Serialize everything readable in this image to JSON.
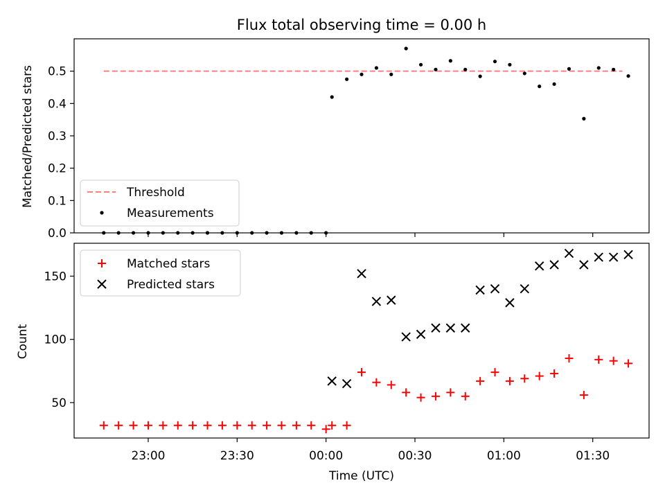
{
  "chart_data": [
    {
      "type": "scatter",
      "title": "Flux total observing time = 0.00 h",
      "ylabel": "Matched/Predicted stars",
      "ylim": [
        0,
        0.6
      ],
      "yticks": [
        "0.0",
        "0.1",
        "0.2",
        "0.3",
        "0.4",
        "0.5"
      ],
      "grid": false,
      "legend_position": "lower-left",
      "threshold": {
        "name": "Threshold",
        "value": 0.5,
        "x_range": [
          "22:45",
          "01:40"
        ],
        "color": "#ff7f7f"
      },
      "series": [
        {
          "name": "Measurements",
          "color": "#000000",
          "marker": "dot",
          "x": [
            "22:45",
            "22:50",
            "22:55",
            "23:00",
            "23:05",
            "23:10",
            "23:15",
            "23:20",
            "23:25",
            "23:30",
            "23:35",
            "23:40",
            "23:45",
            "23:50",
            "23:55",
            "00:00",
            "00:02",
            "00:07",
            "00:12",
            "00:17",
            "00:22",
            "00:27",
            "00:32",
            "00:37",
            "00:42",
            "00:47",
            "00:52",
            "00:57",
            "01:02",
            "01:07",
            "01:12",
            "01:17",
            "01:22",
            "01:27",
            "01:32",
            "01:37",
            "01:42"
          ],
          "y": [
            0,
            0,
            0,
            0,
            0,
            0,
            0,
            0,
            0,
            0,
            0,
            0,
            0,
            0,
            0,
            0,
            0.42,
            0.475,
            0.49,
            0.51,
            0.49,
            0.57,
            0.52,
            0.505,
            0.532,
            0.505,
            0.484,
            0.53,
            0.52,
            0.493,
            0.453,
            0.46,
            0.507,
            0.353,
            0.51,
            0.505,
            0.485
          ]
        }
      ]
    },
    {
      "type": "scatter",
      "xlabel": "Time (UTC)",
      "ylabel": "Count",
      "ylim": [
        22,
        176
      ],
      "yticks": [
        "50",
        "100",
        "150"
      ],
      "xticks": [
        "23:00",
        "23:30",
        "00:00",
        "00:30",
        "01:00",
        "01:30"
      ],
      "x_range": [
        "22:35",
        "01:49"
      ],
      "grid": false,
      "legend_position": "upper-left",
      "series": [
        {
          "name": "Matched stars",
          "color": "#ff0000",
          "marker": "plus",
          "x": [
            "22:45",
            "22:50",
            "22:55",
            "23:00",
            "23:05",
            "23:10",
            "23:15",
            "23:20",
            "23:25",
            "23:30",
            "23:35",
            "23:40",
            "23:45",
            "23:50",
            "23:55",
            "00:00",
            "00:02",
            "00:07",
            "00:12",
            "00:17",
            "00:22",
            "00:27",
            "00:32",
            "00:37",
            "00:42",
            "00:47",
            "00:52",
            "00:57",
            "01:02",
            "01:07",
            "01:12",
            "01:17",
            "01:22",
            "01:27",
            "01:32",
            "01:37",
            "01:42"
          ],
          "y": [
            32,
            32,
            32,
            32,
            32,
            32,
            32,
            32,
            32,
            32,
            32,
            32,
            32,
            32,
            32,
            29,
            32,
            32,
            74,
            66,
            64,
            58,
            54,
            55,
            58,
            55,
            67,
            74,
            67,
            69,
            71,
            73,
            85,
            56,
            84,
            83,
            81
          ]
        },
        {
          "name": "Predicted stars",
          "color": "#000000",
          "marker": "x",
          "x": [
            "00:02",
            "00:07",
            "00:12",
            "00:17",
            "00:22",
            "00:27",
            "00:32",
            "00:37",
            "00:42",
            "00:47",
            "00:52",
            "00:57",
            "01:02",
            "01:07",
            "01:12",
            "01:17",
            "01:22",
            "01:27",
            "01:32",
            "01:37",
            "01:42"
          ],
          "y": [
            67,
            65,
            152,
            130,
            131,
            102,
            104,
            109,
            109,
            109,
            139,
            140,
            129,
            140,
            158,
            159,
            168,
            159,
            165,
            165,
            167
          ]
        }
      ]
    }
  ]
}
